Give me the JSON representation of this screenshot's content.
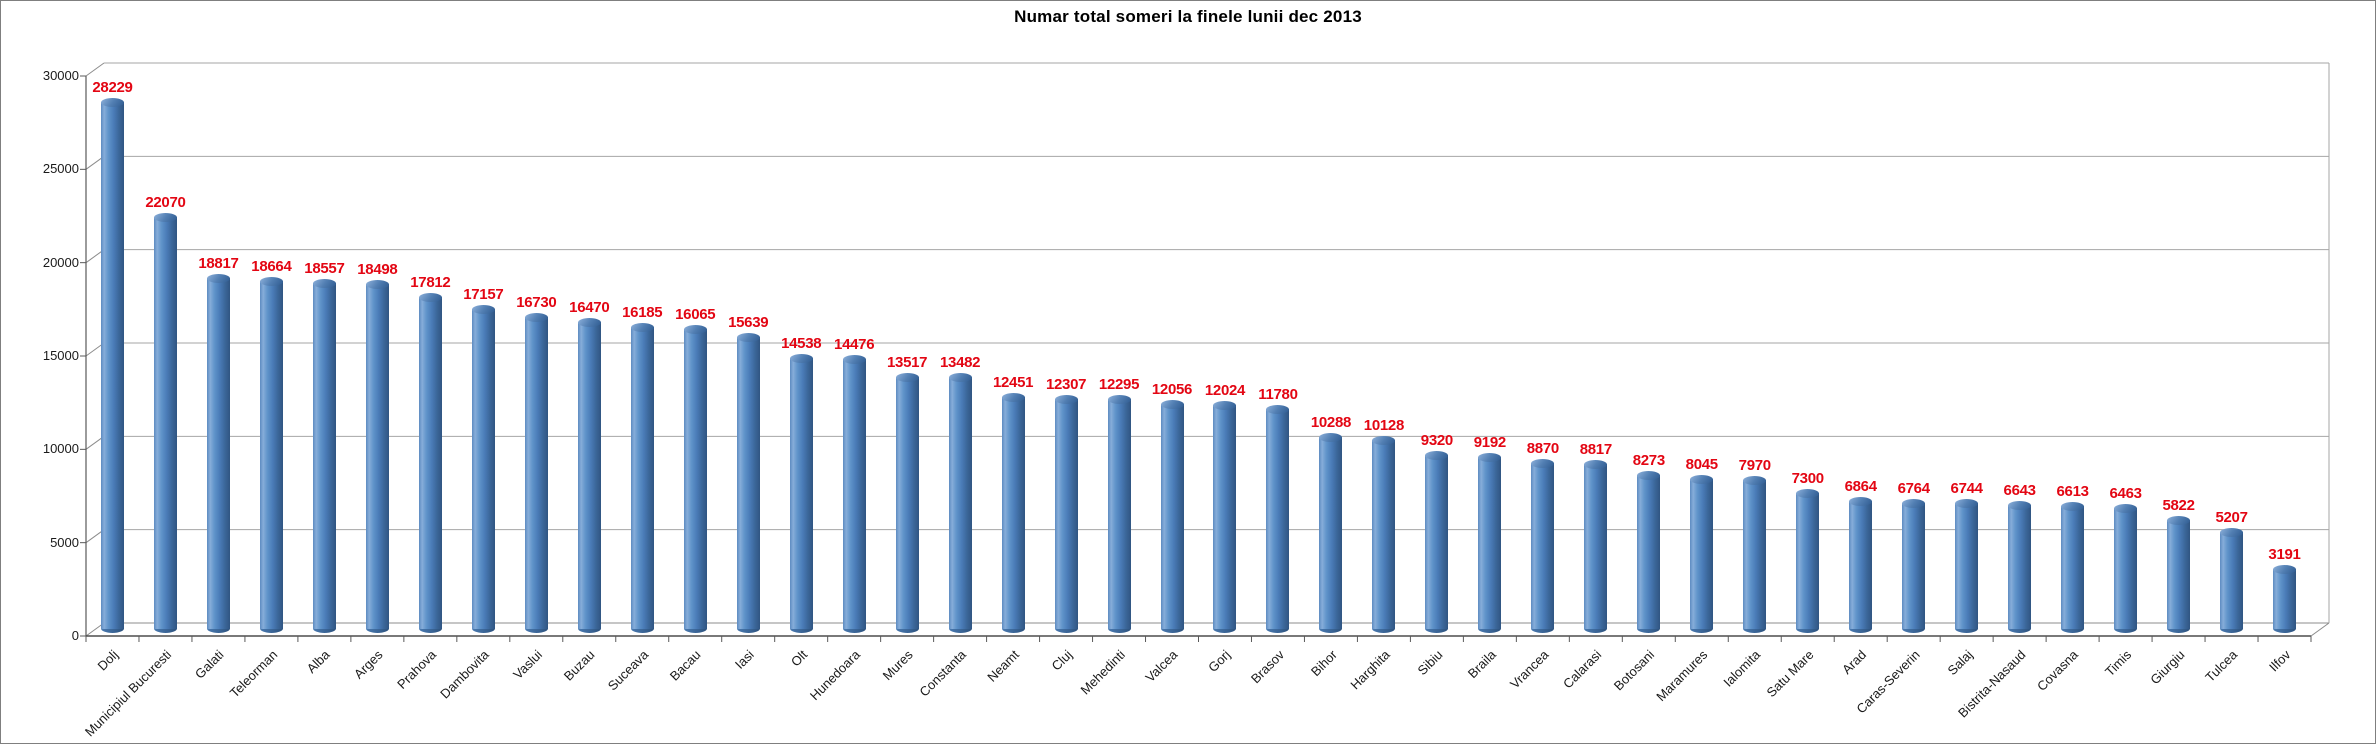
{
  "chart_data": {
    "type": "bar",
    "subtype": "3d-cylinder",
    "title": "Numar total someri la finele lunii dec 2013",
    "categories": [
      "Dolj",
      "Municipiul Bucuresti",
      "Galati",
      "Teleorman",
      "Alba",
      "Arges",
      "Prahova",
      "Dambovita",
      "Vaslui",
      "Buzau",
      "Suceava",
      "Bacau",
      "Iasi",
      "Olt",
      "Hunedoara",
      "Mures",
      "Constanta",
      "Neamt",
      "Cluj",
      "Mehedinti",
      "Valcea",
      "Gorj",
      "Brasov",
      "Bihor",
      "Harghita",
      "Sibiu",
      "Braila",
      "Vrancea",
      "Calarasi",
      "Botosani",
      "Maramures",
      "Ialomita",
      "Satu Mare",
      "Arad",
      "Caras-Severin",
      "Salaj",
      "Bistrita-Nasaud",
      "Covasna",
      "Timis",
      "Giurgiu",
      "Tulcea",
      "Ilfov"
    ],
    "values": [
      28229,
      22070,
      18817,
      18664,
      18557,
      18498,
      17812,
      17157,
      16730,
      16470,
      16185,
      16065,
      15639,
      14538,
      14476,
      13517,
      13482,
      12451,
      12307,
      12295,
      12056,
      12024,
      11780,
      10288,
      10128,
      9320,
      9192,
      8870,
      8817,
      8273,
      8045,
      7970,
      7300,
      6864,
      6764,
      6744,
      6643,
      6613,
      6463,
      5822,
      5207,
      3191
    ],
    "xlabel": "",
    "ylabel": "",
    "ylim": [
      0,
      30000
    ],
    "ytick_interval": 5000,
    "ytick_labels": [
      "0",
      "5000",
      "10000",
      "15000",
      "20000",
      "25000",
      "30000"
    ],
    "grid": true,
    "legend": "none",
    "data_labels": "above-bars",
    "colors": {
      "bar_fill": "#4F81BD",
      "bar_shadow": "#2E5A8F",
      "bar_highlight": "#86ADD9",
      "data_label": "#E30613",
      "gridline": "#A6A6A6",
      "axis_line": "#595959",
      "text": "#1A1A1A",
      "background": "#FFFFFF"
    }
  }
}
